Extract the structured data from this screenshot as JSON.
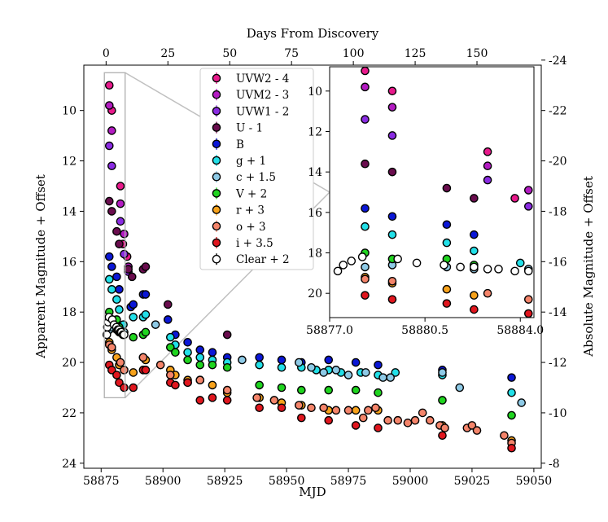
{
  "chart_data": {
    "type": "scatter",
    "title": "",
    "xlabel": "MJD",
    "ylabel": "Apparent Magnitude + Offset",
    "x2label": "Days From Discovery",
    "y2label": "Absolute Magnitude + Offset",
    "xlim": [
      58868,
      59053
    ],
    "ylim": [
      24.2,
      8.2
    ],
    "x2lim": [
      -9,
      176
    ],
    "y2lim": [
      -7.8,
      -23.8
    ],
    "xticks": [
      58875,
      58900,
      58925,
      58950,
      58975,
      59000,
      59025,
      59050
    ],
    "xtick_labels": [
      "58875",
      "58900",
      "58925",
      "58950",
      "58975",
      "59000",
      "59025",
      "59050"
    ],
    "x2ticks": [
      0,
      25,
      50,
      75,
      100,
      125,
      150
    ],
    "x2tick_labels": [
      "0",
      "25",
      "50",
      "75",
      "100",
      "125",
      "150"
    ],
    "yticks": [
      10,
      12,
      14,
      16,
      18,
      20,
      22,
      24
    ],
    "ytick_labels": [
      "10",
      "12",
      "14",
      "16",
      "18",
      "20",
      "22",
      "24"
    ],
    "y2ticks": [
      -8,
      -10,
      -12,
      -14,
      -16,
      -18,
      -20,
      -22,
      -24
    ],
    "y2tick_labels": [
      "-8",
      "-10",
      "-12",
      "-14",
      "-16",
      "-18",
      "-20",
      "-22",
      "-24"
    ],
    "legend_position": "upper-center",
    "zoom_box": {
      "xlim": [
        58876.3,
        58884.7
      ],
      "ylim": [
        8.5,
        21.4
      ]
    },
    "inset": {
      "xlim": [
        58877,
        58884.5
      ],
      "ylim": [
        21.2,
        8.8
      ],
      "xticks": [
        58877.0,
        58880.5,
        58884.0
      ],
      "xtick_labels": [
        "58877.0",
        "58880.5",
        "58884.0"
      ],
      "yticks": [
        10,
        12,
        14,
        16,
        18,
        20
      ],
      "ytick_labels": [
        "10",
        "12",
        "14",
        "16",
        "18",
        "20"
      ]
    },
    "series": [
      {
        "name": "UVW2 - 4",
        "color": "#e8198b",
        "x": [
          58878.3,
          58879.3,
          58882.8,
          58883.8,
          58885.5
        ],
        "y": [
          9.0,
          10.0,
          13.0,
          15.3,
          15.8
        ]
      },
      {
        "name": "UVM2 - 3",
        "color": "#b31bc2",
        "x": [
          58878.3,
          58879.3,
          58882.8,
          58884.3,
          58886
        ],
        "y": [
          9.8,
          10.8,
          13.7,
          14.9,
          16.2
        ]
      },
      {
        "name": "UVW1 - 2",
        "color": "#8a2be2",
        "x": [
          58878.3,
          58879.3,
          58882.8,
          58884.3,
          58886
        ],
        "y": [
          11.4,
          12.2,
          14.4,
          15.7,
          16.4
        ]
      },
      {
        "name": "U - 1",
        "color": "#6a0d4e",
        "x": [
          58878.3,
          58879.3,
          58881.3,
          58882.3,
          58886,
          58887.5,
          58892,
          58893,
          58902,
          58926
        ],
        "y": [
          13.6,
          14.0,
          14.8,
          15.3,
          16.3,
          16.6,
          16.3,
          16.2,
          17.7,
          18.9
        ]
      },
      {
        "name": "B",
        "color": "#0b17d6",
        "x": [
          58878.3,
          58879.3,
          58881.3,
          58882.3,
          58887,
          58888,
          58892,
          58893,
          58902,
          58905,
          58910,
          58915,
          58920,
          58926,
          58939,
          58948,
          58956,
          58967,
          58978,
          58987,
          59013,
          59041
        ],
        "y": [
          15.8,
          16.2,
          16.6,
          17.1,
          17.8,
          17.7,
          17.3,
          17.3,
          18.3,
          18.9,
          19.2,
          19.5,
          19.6,
          19.8,
          19.8,
          19.9,
          20.0,
          19.9,
          20.0,
          20.1,
          20.3,
          20.6
        ]
      },
      {
        "name": "g + 1",
        "color": "#22e0e8",
        "x": [
          58878.3,
          58879.3,
          58881.3,
          58882.3,
          58884,
          58888,
          58892,
          58893,
          58903,
          58905,
          58910,
          58915,
          58920,
          58926,
          58939,
          58948,
          58956,
          58962,
          58967,
          58972,
          58980,
          58987,
          58994,
          59013,
          59041
        ],
        "y": [
          16.7,
          17.1,
          17.5,
          17.9,
          18.5,
          18.2,
          18.2,
          18.1,
          19.0,
          19.3,
          19.6,
          19.8,
          19.9,
          20.0,
          20.1,
          20.2,
          20.2,
          20.3,
          20.3,
          20.4,
          20.4,
          20.5,
          20.4,
          20.5,
          21.2
        ]
      },
      {
        "name": "c + 1.5",
        "color": "#8ecae6",
        "x": [
          58878.3,
          58879.3,
          58881.3,
          58882.3,
          58884.3,
          58897,
          58932,
          58955,
          58960,
          58965,
          58970,
          58975,
          58982,
          58989,
          58992,
          59013,
          59020,
          59045
        ],
        "y": [
          18.7,
          18.6,
          18.7,
          18.8,
          18.8,
          18.5,
          19.9,
          20.0,
          20.2,
          20.4,
          20.3,
          20.5,
          20.4,
          20.6,
          20.6,
          20.4,
          21.0,
          21.6
        ]
      },
      {
        "name": "V + 2",
        "color": "#1fd41f",
        "x": [
          58878.3,
          58879.3,
          58881.3,
          58882.3,
          58888,
          58892,
          58893,
          58903,
          58905,
          58910,
          58915,
          58920,
          58926,
          58939,
          58948,
          58956,
          58967,
          58978,
          58987,
          59013,
          59041
        ],
        "y": [
          18.0,
          18.3,
          18.3,
          18.6,
          19.0,
          18.9,
          18.8,
          19.4,
          19.6,
          19.9,
          20.1,
          20.1,
          20.2,
          20.9,
          21.0,
          21.1,
          21.1,
          21.1,
          21.2,
          21.5,
          22.1
        ]
      },
      {
        "name": "r + 3",
        "color": "#f7a21b",
        "x": [
          58878.3,
          58879.3,
          58881.3,
          58882.3,
          58888,
          58892,
          58893,
          58903,
          58905,
          58910,
          58915,
          58920,
          58926,
          58939,
          58948,
          58956,
          58967,
          58978,
          58987,
          59013,
          59041
        ],
        "y": [
          19.2,
          19.5,
          19.8,
          20.1,
          20.4,
          19.8,
          19.9,
          20.3,
          20.5,
          20.7,
          20.7,
          20.9,
          21.2,
          21.4,
          21.6,
          21.7,
          21.9,
          21.9,
          21.9,
          22.5,
          23.1
        ]
      },
      {
        "name": "o + 3",
        "color": "#f4846a",
        "x": [
          58878.3,
          58879.3,
          58882.8,
          58884.3,
          58892,
          58899,
          58903,
          58910,
          58915,
          58926,
          58938,
          58945,
          58955,
          58960,
          58965,
          58970,
          58975,
          58981,
          58983,
          58986,
          58991,
          58995,
          58999,
          59002,
          59005,
          59008,
          59012,
          59014,
          59023,
          59025,
          59027,
          59038,
          59041
        ],
        "y": [
          19.3,
          19.4,
          20.0,
          20.3,
          19.8,
          20.1,
          20.5,
          20.8,
          20.7,
          21.1,
          21.4,
          21.5,
          21.7,
          21.8,
          21.8,
          21.9,
          21.9,
          22.2,
          21.9,
          21.8,
          22.3,
          22.3,
          22.4,
          22.3,
          22.0,
          22.3,
          22.5,
          22.6,
          22.6,
          22.5,
          22.7,
          22.9,
          23.2
        ]
      },
      {
        "name": "i + 3.5",
        "color": "#e0161e",
        "x": [
          58878.3,
          58879.3,
          58881.3,
          58882.3,
          58884.3,
          58888,
          58892,
          58893,
          58903,
          58905,
          58910,
          58915,
          58920,
          58926,
          58939,
          58948,
          58956,
          58967,
          58978,
          58987,
          59013,
          59041
        ],
        "y": [
          20.1,
          20.3,
          20.5,
          20.8,
          21.0,
          21.0,
          20.3,
          20.3,
          20.8,
          20.9,
          20.8,
          21.5,
          21.4,
          21.5,
          21.8,
          21.8,
          22.2,
          22.3,
          22.5,
          22.6,
          22.9,
          23.4
        ]
      },
      {
        "name": "Clear + 2",
        "color": "#ffffff",
        "x": [
          58877.3,
          58877.5,
          58877.8,
          58878.2,
          58879.5,
          58880.2,
          58881.2,
          58881.8,
          58882.3,
          58882.8,
          58883.2,
          58883.8,
          58884.3
        ],
        "y": [
          18.9,
          18.6,
          18.4,
          18.2,
          18.3,
          18.5,
          18.6,
          18.7,
          18.7,
          18.8,
          18.8,
          18.9,
          18.9
        ]
      }
    ]
  }
}
